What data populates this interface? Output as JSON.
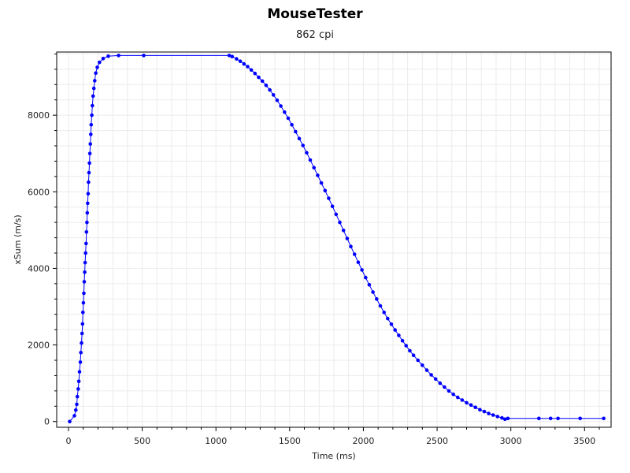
{
  "chart_data": {
    "type": "line",
    "title": "MouseTester",
    "subtitle": "862 cpi",
    "xlabel": "Time (ms)",
    "ylabel": "xSum (m/s)",
    "xlim": [
      -80,
      3680
    ],
    "ylim": [
      -150,
      9650
    ],
    "xticks": [
      0,
      500,
      1000,
      1500,
      2000,
      2500,
      3000,
      3500
    ],
    "yticks": [
      0,
      2000,
      4000,
      6000,
      8000
    ],
    "grid": true,
    "colors": {
      "series": "#0000ff",
      "grid": "#ebebeb",
      "axis": "#000000"
    },
    "series": [
      {
        "points": [
          [
            8,
            0
          ],
          [
            40,
            150
          ],
          [
            50,
            300
          ],
          [
            56,
            450
          ],
          [
            60,
            650
          ],
          [
            66,
            850
          ],
          [
            70,
            1050
          ],
          [
            75,
            1300
          ],
          [
            80,
            1550
          ],
          [
            84,
            1800
          ],
          [
            88,
            2050
          ],
          [
            92,
            2300
          ],
          [
            95,
            2550
          ],
          [
            98,
            2850
          ],
          [
            101,
            3100
          ],
          [
            104,
            3350
          ],
          [
            107,
            3650
          ],
          [
            110,
            3900
          ],
          [
            113,
            4150
          ],
          [
            116,
            4400
          ],
          [
            119,
            4650
          ],
          [
            122,
            4950
          ],
          [
            125,
            5200
          ],
          [
            127,
            5450
          ],
          [
            130,
            5700
          ],
          [
            133,
            5950
          ],
          [
            136,
            6250
          ],
          [
            139,
            6500
          ],
          [
            142,
            6750
          ],
          [
            145,
            7000
          ],
          [
            148,
            7250
          ],
          [
            151,
            7500
          ],
          [
            154,
            7750
          ],
          [
            158,
            8000
          ],
          [
            162,
            8250
          ],
          [
            167,
            8500
          ],
          [
            172,
            8700
          ],
          [
            178,
            8900
          ],
          [
            185,
            9100
          ],
          [
            195,
            9250
          ],
          [
            210,
            9380
          ],
          [
            235,
            9480
          ],
          [
            270,
            9540
          ],
          [
            340,
            9560
          ],
          [
            510,
            9560
          ],
          [
            1090,
            9560
          ],
          [
            1110,
            9530
          ],
          [
            1140,
            9470
          ],
          [
            1165,
            9410
          ],
          [
            1190,
            9340
          ],
          [
            1215,
            9270
          ],
          [
            1240,
            9180
          ],
          [
            1265,
            9090
          ],
          [
            1290,
            8990
          ],
          [
            1315,
            8890
          ],
          [
            1340,
            8780
          ],
          [
            1365,
            8660
          ],
          [
            1390,
            8530
          ],
          [
            1415,
            8390
          ],
          [
            1440,
            8240
          ],
          [
            1465,
            8080
          ],
          [
            1490,
            7920
          ],
          [
            1515,
            7750
          ],
          [
            1540,
            7570
          ],
          [
            1565,
            7390
          ],
          [
            1590,
            7210
          ],
          [
            1615,
            7020
          ],
          [
            1640,
            6830
          ],
          [
            1665,
            6630
          ],
          [
            1690,
            6430
          ],
          [
            1715,
            6230
          ],
          [
            1740,
            6030
          ],
          [
            1765,
            5830
          ],
          [
            1790,
            5620
          ],
          [
            1815,
            5410
          ],
          [
            1840,
            5200
          ],
          [
            1865,
            4990
          ],
          [
            1890,
            4780
          ],
          [
            1915,
            4570
          ],
          [
            1940,
            4370
          ],
          [
            1965,
            4160
          ],
          [
            1990,
            3960
          ],
          [
            2015,
            3760
          ],
          [
            2040,
            3570
          ],
          [
            2065,
            3380
          ],
          [
            2090,
            3200
          ],
          [
            2115,
            3020
          ],
          [
            2140,
            2850
          ],
          [
            2165,
            2690
          ],
          [
            2190,
            2540
          ],
          [
            2215,
            2390
          ],
          [
            2240,
            2250
          ],
          [
            2265,
            2110
          ],
          [
            2290,
            1980
          ],
          [
            2315,
            1850
          ],
          [
            2340,
            1730
          ],
          [
            2370,
            1600
          ],
          [
            2400,
            1470
          ],
          [
            2430,
            1340
          ],
          [
            2460,
            1220
          ],
          [
            2490,
            1110
          ],
          [
            2520,
            1000
          ],
          [
            2550,
            900
          ],
          [
            2580,
            800
          ],
          [
            2610,
            710
          ],
          [
            2640,
            630
          ],
          [
            2670,
            560
          ],
          [
            2700,
            490
          ],
          [
            2730,
            430
          ],
          [
            2760,
            370
          ],
          [
            2790,
            310
          ],
          [
            2820,
            260
          ],
          [
            2850,
            210
          ],
          [
            2880,
            170
          ],
          [
            2910,
            130
          ],
          [
            2940,
            95
          ],
          [
            2960,
            60
          ],
          [
            2980,
            80
          ],
          [
            3190,
            80
          ],
          [
            3270,
            80
          ],
          [
            3320,
            80
          ],
          [
            3470,
            80
          ],
          [
            3630,
            80
          ]
        ]
      }
    ]
  }
}
